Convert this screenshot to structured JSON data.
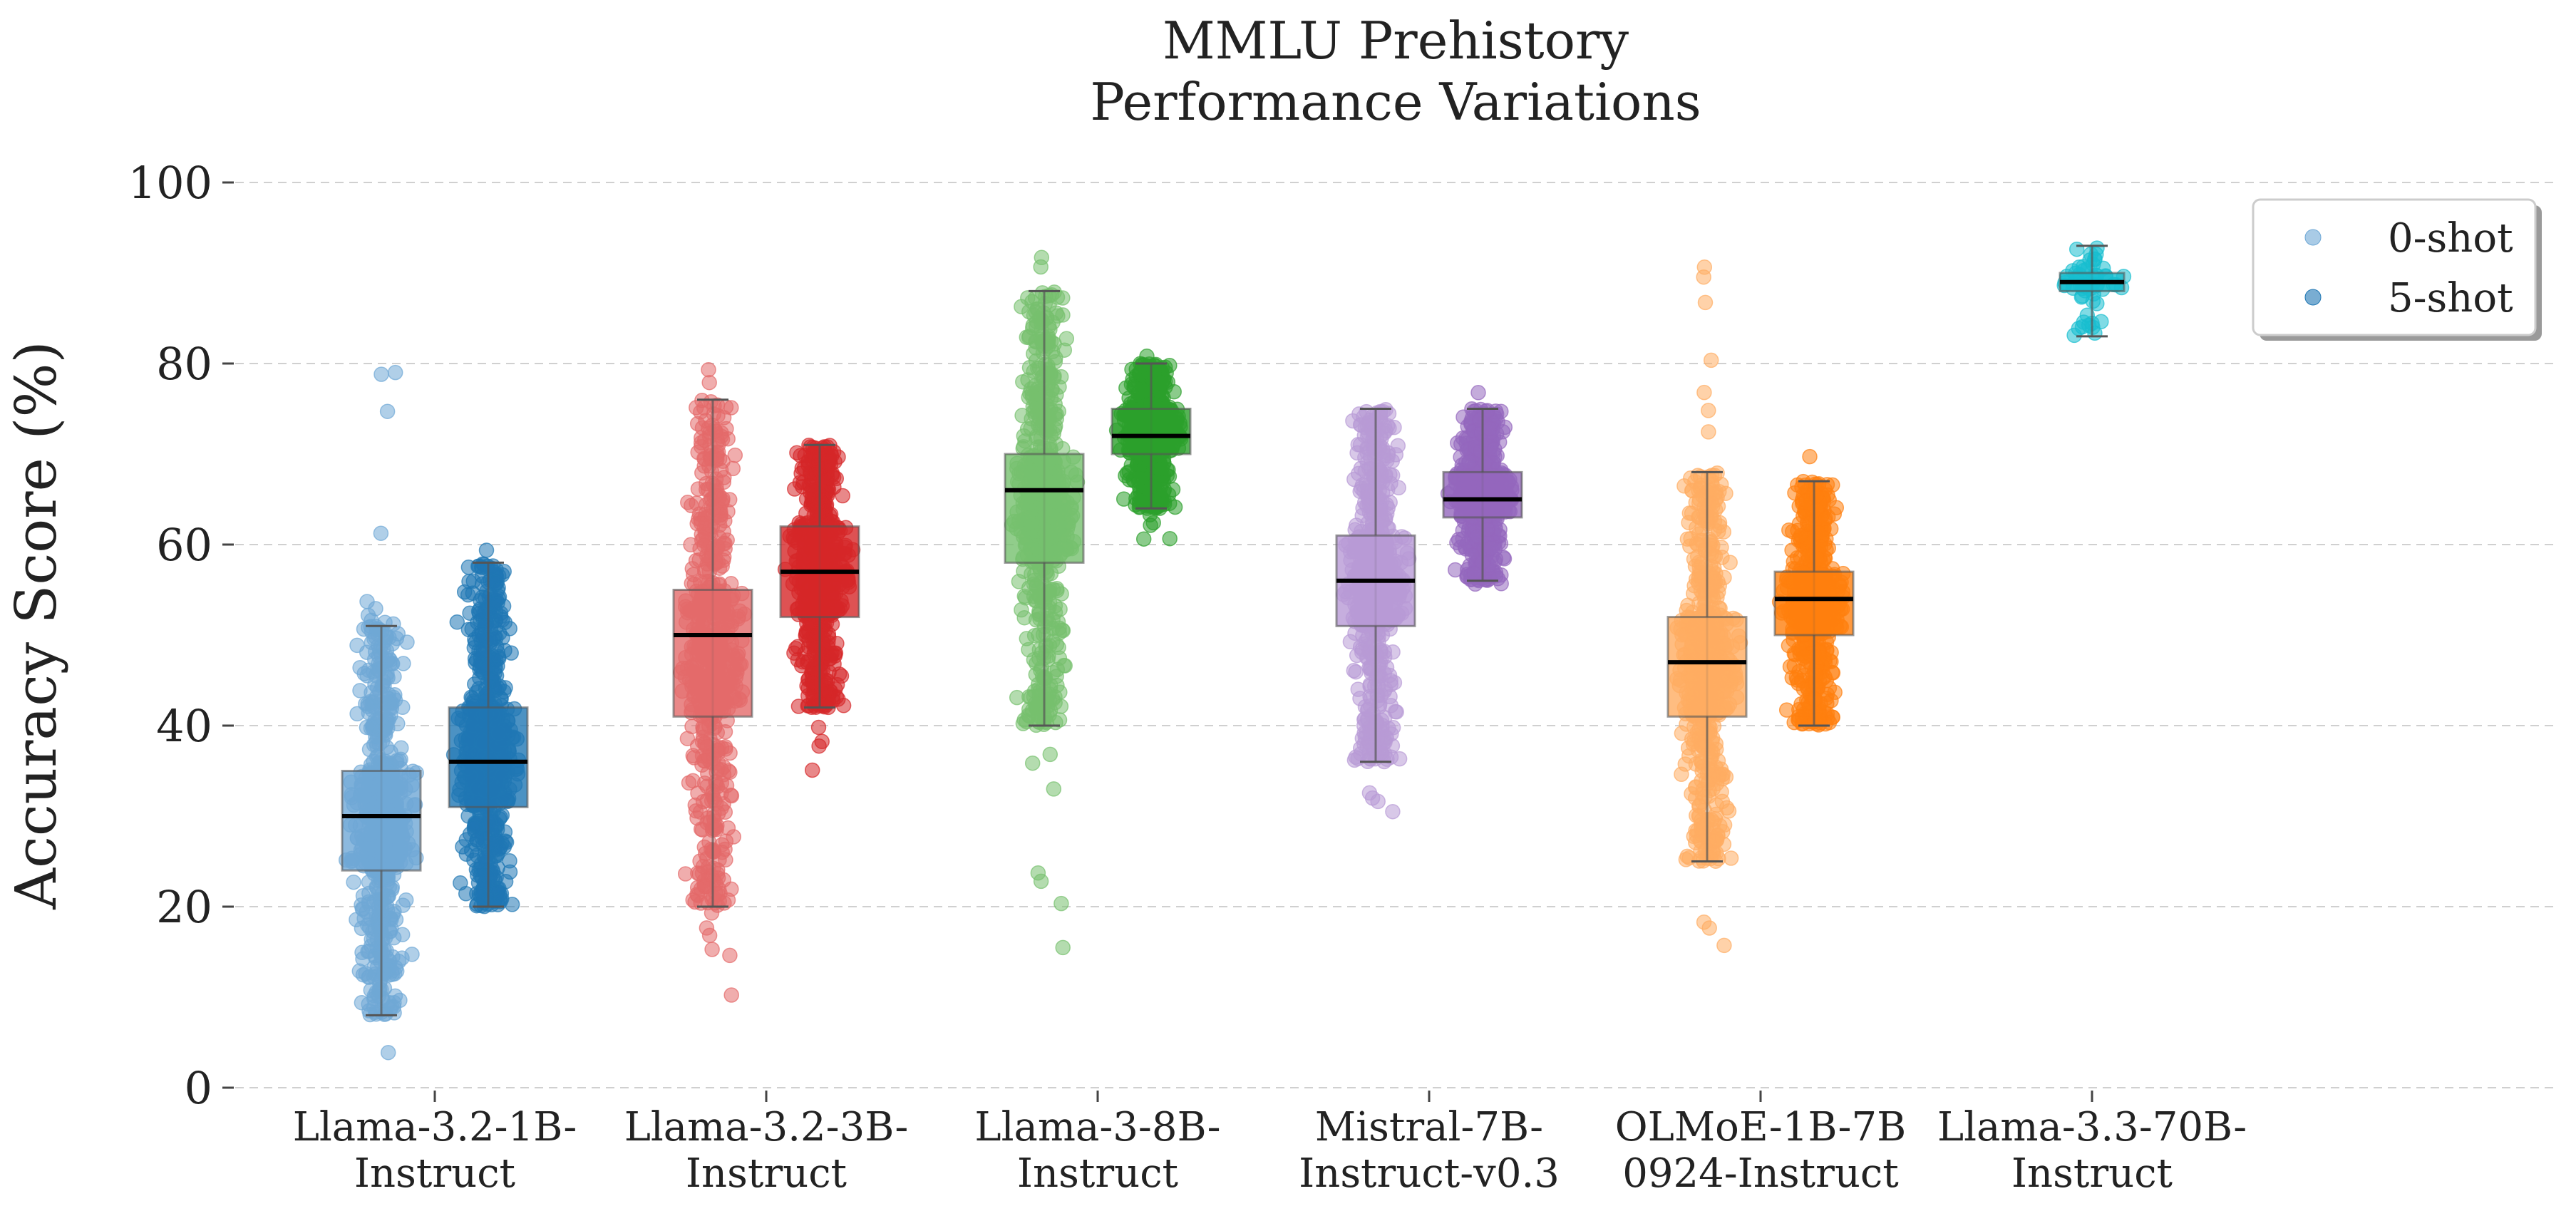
{
  "chart_data": {
    "type": "box-strip",
    "title": [
      "MMLU Prehistory",
      "Performance Variations"
    ],
    "ylabel": "Accuracy Score (%)",
    "xlabel": "",
    "ylim": [
      0,
      100
    ],
    "yticks": [
      0,
      20,
      40,
      60,
      80,
      100
    ],
    "grid": "horizontal-dashed",
    "legend": {
      "placement": "top-right",
      "entries": [
        "0-shot",
        "5-shot"
      ]
    },
    "categories": [
      [
        "Llama-3.2-1B-",
        "Instruct"
      ],
      [
        "Llama-3.2-3B-",
        "Instruct"
      ],
      [
        "Llama-3-8B-",
        "Instruct"
      ],
      [
        "Mistral-7B-",
        "Instruct-v0.3"
      ],
      [
        "OLMoE-1B-7B",
        "0924-Instruct"
      ],
      [
        "Llama-3.3-70B-",
        "Instruct"
      ]
    ],
    "series": [
      {
        "model": "Llama-3.2-1B-Instruct",
        "shot": "0-shot",
        "color": "#6fa8d6",
        "whisker_low": 8,
        "q1": 24,
        "median": 30,
        "q3": 35,
        "whisker_high": 51,
        "min": 1,
        "max": 81
      },
      {
        "model": "Llama-3.2-1B-Instruct",
        "shot": "5-shot",
        "color": "#1f77b4",
        "whisker_low": 20,
        "q1": 31,
        "median": 36,
        "q3": 42,
        "whisker_high": 58,
        "min": 20,
        "max": 62
      },
      {
        "model": "Llama-3.2-3B-Instruct",
        "shot": "0-shot",
        "color": "#e46a6a",
        "whisker_low": 20,
        "q1": 41,
        "median": 50,
        "q3": 55,
        "whisker_high": 76,
        "min": 8,
        "max": 80
      },
      {
        "model": "Llama-3.2-3B-Instruct",
        "shot": "5-shot",
        "color": "#d62728",
        "whisker_low": 42,
        "q1": 52,
        "median": 57,
        "q3": 62,
        "whisker_high": 71,
        "min": 34,
        "max": 71
      },
      {
        "model": "Llama-3-8B-Instruct",
        "shot": "0-shot",
        "color": "#76c06e",
        "whisker_low": 40,
        "q1": 58,
        "median": 66,
        "q3": 70,
        "whisker_high": 88,
        "min": 13,
        "max": 93
      },
      {
        "model": "Llama-3-8B-Instruct",
        "shot": "5-shot",
        "color": "#2ca02c",
        "whisker_low": 64,
        "q1": 70,
        "median": 72,
        "q3": 75,
        "whisker_high": 80,
        "min": 60,
        "max": 81
      },
      {
        "model": "Mistral-7B-Instruct-v0.3",
        "shot": "0-shot",
        "color": "#b89ad6",
        "whisker_low": 36,
        "q1": 51,
        "median": 56,
        "q3": 61,
        "whisker_high": 75,
        "min": 26,
        "max": 75
      },
      {
        "model": "Mistral-7B-Instruct-v0.3",
        "shot": "5-shot",
        "color": "#9467bd",
        "whisker_low": 56,
        "q1": 63,
        "median": 65,
        "q3": 68,
        "whisker_high": 75,
        "min": 55,
        "max": 77
      },
      {
        "model": "OLMoE-1B-7B-0924-Instruct",
        "shot": "0-shot",
        "color": "#ffad62",
        "whisker_low": 25,
        "q1": 41,
        "median": 47,
        "q3": 52,
        "whisker_high": 68,
        "min": 8,
        "max": 92
      },
      {
        "model": "OLMoE-1B-7B-0924-Instruct",
        "shot": "5-shot",
        "color": "#ff7f0e",
        "whisker_low": 40,
        "q1": 50,
        "median": 54,
        "q3": 57,
        "whisker_high": 67,
        "min": 40,
        "max": 70
      },
      {
        "model": "Llama-3.3-70B-Instruct",
        "shot": "5-shot",
        "color": "#17becf",
        "whisker_low": 83,
        "q1": 88,
        "median": 89,
        "q3": 90,
        "whisker_high": 93,
        "min": 83,
        "max": 93
      }
    ]
  }
}
